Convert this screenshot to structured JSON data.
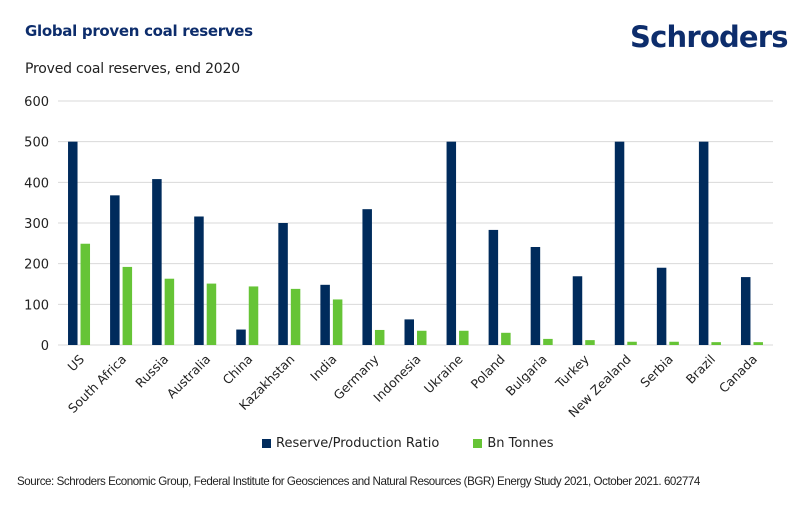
{
  "header": {
    "title": "Global proven coal reserves",
    "subtitle": "Proved coal reserves, end 2020",
    "logo": "Schroders"
  },
  "footer": {
    "source": "Source: Schroders Economic Group, Federal Institute for Geosciences and Natural Resources (BGR) Energy Study 2021, October 2021. 602774"
  },
  "colors": {
    "brand": "#0d2d6c",
    "series_rp": "#002b5c",
    "series_bn": "#66c436",
    "grid": "#d9d9d9"
  },
  "chart_data": {
    "type": "bar",
    "title": "Global proven coal reserves",
    "subtitle": "Proved coal reserves, end 2020",
    "xlabel": "",
    "ylabel": "",
    "ylim": [
      0,
      600
    ],
    "yticks": [
      0,
      100,
      200,
      300,
      400,
      500,
      600
    ],
    "grid": true,
    "legend_position": "bottom",
    "categories": [
      "US",
      "South Africa",
      "Russia",
      "Australia",
      "China",
      "Kazakhstan",
      "India",
      "Germany",
      "Indonesia",
      "Ukraine",
      "Poland",
      "Bulgaria",
      "Turkey",
      "New Zealand",
      "Serbia",
      "Brazil",
      "Canada"
    ],
    "series": [
      {
        "name": "Reserve/Production Ratio",
        "values": [
          500,
          368,
          408,
          316,
          38,
          300,
          148,
          334,
          63,
          500,
          283,
          241,
          169,
          500,
          190,
          500,
          167
        ]
      },
      {
        "name": "Bn Tonnes",
        "values": [
          249,
          192,
          163,
          151,
          144,
          138,
          112,
          37,
          35,
          35,
          30,
          15,
          12,
          8,
          8,
          7,
          7
        ]
      }
    ]
  }
}
